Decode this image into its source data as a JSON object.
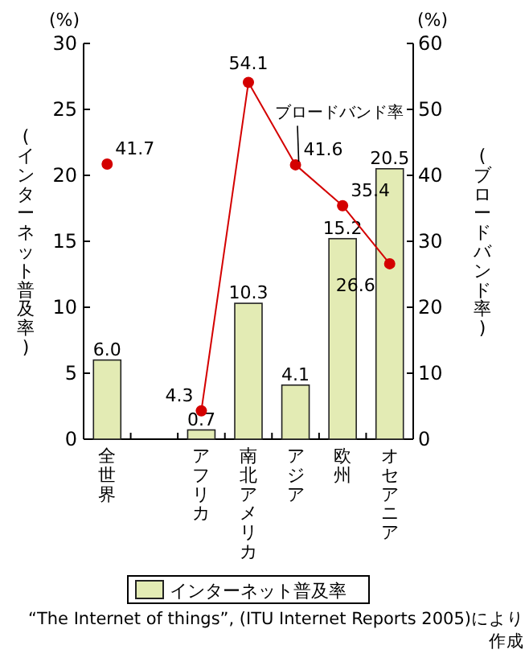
{
  "chart_data": {
    "type": "bar",
    "categories": [
      "全世界",
      null,
      "アフリカ",
      "南北アメリカ",
      "アジア",
      "欧州",
      "オセアニア"
    ],
    "series": [
      {
        "name": "インターネット普及率",
        "color": "#e3ebb4",
        "values": [
          6.0,
          null,
          0.7,
          10.3,
          4.1,
          15.2,
          20.5
        ],
        "value_labels": [
          "6.0",
          null,
          "0.7",
          "10.3",
          "4.1",
          "15.2",
          "20.5"
        ]
      },
      {
        "name": "ブロードバンド率",
        "type": "line",
        "axis": "y2",
        "color": "#d40000",
        "marker": "circle",
        "values": [
          41.7,
          null,
          4.3,
          54.1,
          41.6,
          35.4,
          26.6
        ],
        "value_labels": [
          "41.7",
          null,
          "4.3",
          "54.1",
          "41.6",
          "35.4",
          "26.6"
        ]
      }
    ],
    "ylabel": "(インターネット普及率)",
    "y2label": "(ブロードバンド率)",
    "ylim": [
      0,
      30
    ],
    "yticks": [
      0,
      5,
      10,
      15,
      20,
      25,
      30
    ],
    "y2lim": [
      0,
      60
    ],
    "y2ticks": [
      0,
      10,
      20,
      30,
      40,
      50,
      60
    ],
    "grid": false,
    "legend": "bottom",
    "annotations": [
      "(%)",
      "(%)",
      "“The Internet of things”, (ITU Internet Reports 2005)により作成"
    ]
  }
}
